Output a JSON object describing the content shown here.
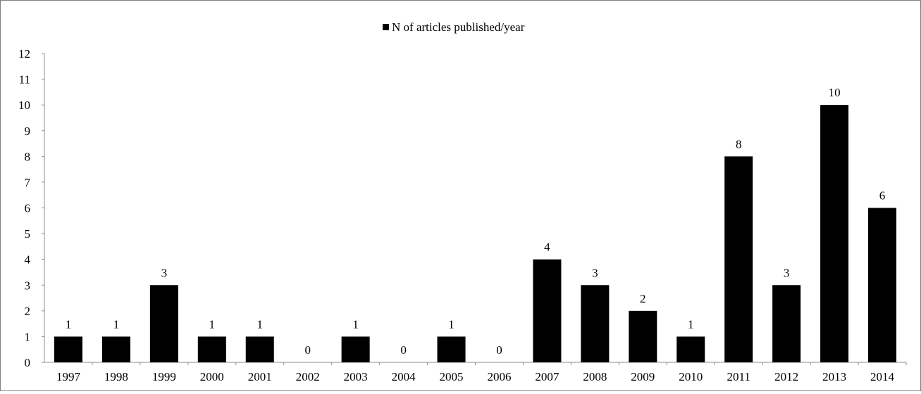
{
  "chart_data": {
    "type": "bar",
    "legend": {
      "label": "N of articles published/year",
      "placement": "top-center"
    },
    "categories": [
      "1997",
      "1998",
      "1999",
      "2000",
      "2001",
      "2002",
      "2003",
      "2004",
      "2005",
      "2006",
      "2007",
      "2008",
      "2009",
      "2010",
      "2011",
      "2012",
      "2013",
      "2014"
    ],
    "series": [
      {
        "name": "N of articles published/year",
        "values": [
          1,
          1,
          3,
          1,
          1,
          0,
          1,
          0,
          1,
          0,
          4,
          3,
          2,
          1,
          8,
          3,
          10,
          6
        ]
      }
    ],
    "ylim": [
      0,
      12
    ],
    "yticks": [
      "0",
      "1",
      "2",
      "3",
      "4",
      "5",
      "6",
      "7",
      "8",
      "9",
      "10",
      "11",
      "12"
    ],
    "data_labels": true,
    "grid": false,
    "bar_color": "#000000"
  }
}
